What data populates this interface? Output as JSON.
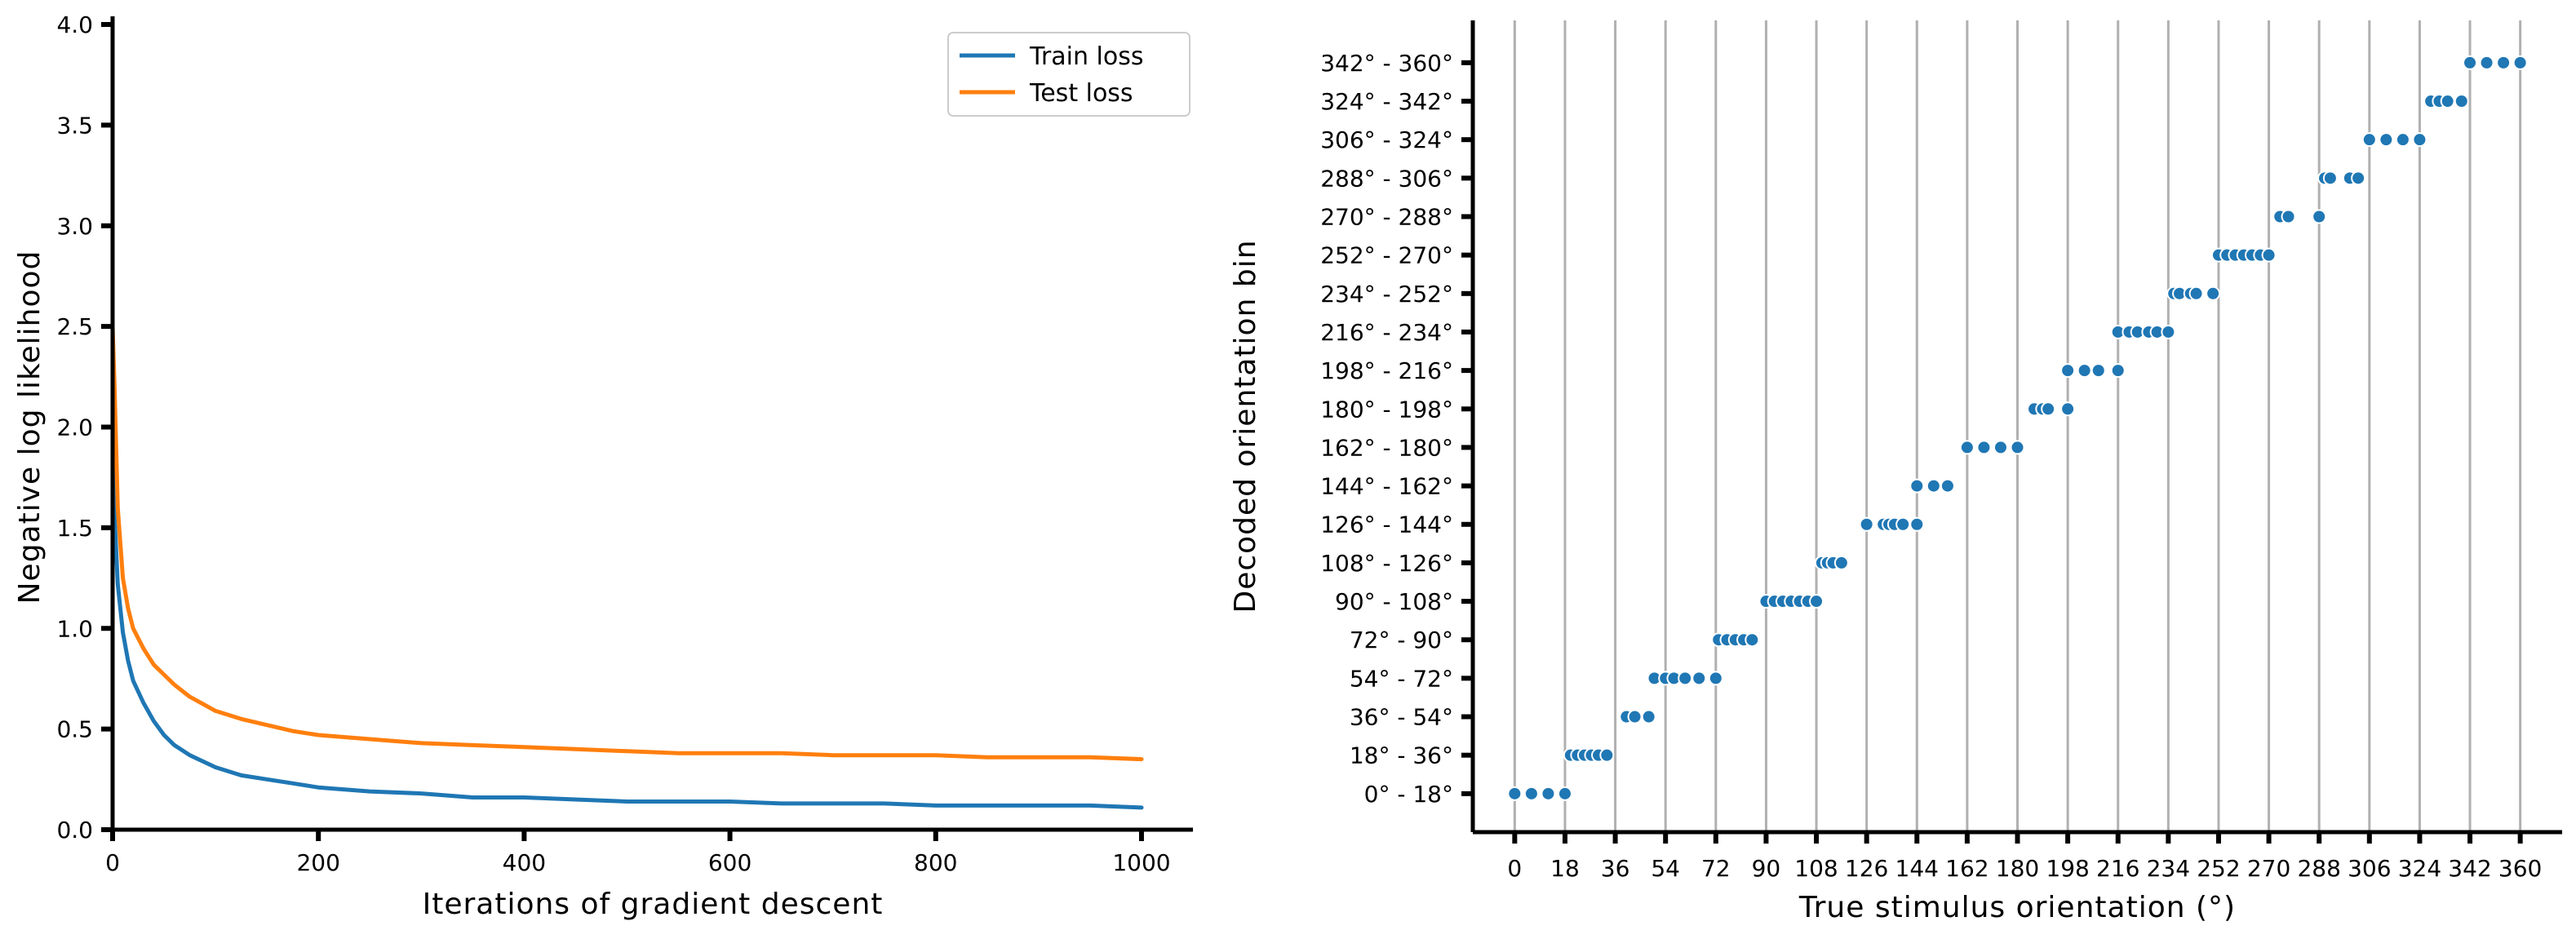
{
  "colors": {
    "train": "#1f77b4",
    "test": "#ff7f0e",
    "axis": "#000000",
    "grid": "#b0b0b0",
    "background": "#ffffff"
  },
  "chart_data": [
    {
      "type": "line",
      "title": "",
      "xlabel": "Iterations of gradient descent",
      "ylabel": "Negative log likelihood",
      "xlim": [
        0,
        1050
      ],
      "ylim": [
        0,
        4.0
      ],
      "xticks": [
        0,
        200,
        400,
        600,
        800,
        1000
      ],
      "xtick_labels": [
        "0",
        "200",
        "400",
        "600",
        "800",
        "1000"
      ],
      "yticks": [
        0.0,
        0.5,
        1.0,
        1.5,
        2.0,
        2.5,
        3.0,
        3.5,
        4.0
      ],
      "ytick_labels": [
        "0.0",
        "0.5",
        "1.0",
        "1.5",
        "2.0",
        "2.5",
        "3.0",
        "3.5",
        "4.0"
      ],
      "legend_placement": "top-right",
      "grid": false,
      "series": [
        {
          "name": "Train loss",
          "x": [
            0,
            2,
            5,
            10,
            15,
            20,
            30,
            40,
            50,
            60,
            75,
            100,
            125,
            150,
            175,
            200,
            250,
            300,
            350,
            400,
            450,
            500,
            550,
            600,
            650,
            700,
            750,
            800,
            850,
            900,
            950,
            1000
          ],
          "y": [
            2.05,
            1.55,
            1.22,
            0.98,
            0.84,
            0.74,
            0.63,
            0.54,
            0.47,
            0.42,
            0.37,
            0.31,
            0.27,
            0.25,
            0.23,
            0.21,
            0.19,
            0.18,
            0.16,
            0.16,
            0.15,
            0.14,
            0.14,
            0.14,
            0.13,
            0.13,
            0.13,
            0.12,
            0.12,
            0.12,
            0.12,
            0.11
          ]
        },
        {
          "name": "Test loss",
          "x": [
            0,
            2,
            5,
            10,
            15,
            20,
            30,
            40,
            50,
            60,
            75,
            100,
            125,
            150,
            175,
            200,
            250,
            300,
            350,
            400,
            450,
            500,
            550,
            600,
            650,
            700,
            750,
            800,
            850,
            900,
            950,
            1000
          ],
          "y": [
            2.5,
            2.18,
            1.6,
            1.25,
            1.1,
            1.0,
            0.9,
            0.82,
            0.77,
            0.72,
            0.66,
            0.59,
            0.55,
            0.52,
            0.49,
            0.47,
            0.45,
            0.43,
            0.42,
            0.41,
            0.4,
            0.39,
            0.38,
            0.38,
            0.38,
            0.37,
            0.37,
            0.37,
            0.36,
            0.36,
            0.36,
            0.35
          ]
        }
      ]
    },
    {
      "type": "scatter",
      "title": "",
      "xlabel": "True stimulus orientation (°)",
      "ylabel": "Decoded orientation bin",
      "xlim": [
        -15,
        375
      ],
      "xticks": [
        0,
        18,
        36,
        54,
        72,
        90,
        108,
        126,
        144,
        162,
        180,
        198,
        216,
        234,
        252,
        270,
        288,
        306,
        324,
        342,
        360
      ],
      "xtick_labels": [
        "0",
        "18",
        "36",
        "54",
        "72",
        "90",
        "108",
        "126",
        "144",
        "162",
        "180",
        "198",
        "216",
        "234",
        "252",
        "270",
        "288",
        "306",
        "324",
        "342",
        "360"
      ],
      "ylim": [
        -1,
        20.1
      ],
      "ytick_labels": [
        "0° - 18°",
        "18° - 36°",
        "36° - 54°",
        "54° - 72°",
        "72° - 90°",
        "90° - 108°",
        "108° - 126°",
        "126° - 144°",
        "144° - 162°",
        "162° - 180°",
        "180° - 198°",
        "198° - 216°",
        "216° - 234°",
        "234° - 252°",
        "252° - 270°",
        "270° - 288°",
        "288° - 306°",
        "306° - 324°",
        "324° - 342°",
        "342° - 360°"
      ],
      "vertical_gridlines_at_xticks": true,
      "marker_color": "#1f77b4",
      "points": [
        [
          0,
          0
        ],
        [
          6,
          0
        ],
        [
          12,
          0
        ],
        [
          18,
          0
        ],
        [
          20,
          1
        ],
        [
          22.5,
          1
        ],
        [
          25,
          1
        ],
        [
          27.5,
          1
        ],
        [
          30,
          1
        ],
        [
          33,
          1
        ],
        [
          40,
          2
        ],
        [
          43,
          2
        ],
        [
          48,
          2
        ],
        [
          50,
          3
        ],
        [
          54,
          3
        ],
        [
          57,
          3
        ],
        [
          61,
          3
        ],
        [
          66,
          3
        ],
        [
          72,
          3
        ],
        [
          73,
          4
        ],
        [
          76,
          4
        ],
        [
          79,
          4
        ],
        [
          82,
          4
        ],
        [
          85,
          4
        ],
        [
          90,
          5
        ],
        [
          93,
          5
        ],
        [
          96,
          5
        ],
        [
          99,
          5
        ],
        [
          102,
          5
        ],
        [
          105,
          5
        ],
        [
          108,
          5
        ],
        [
          110,
          6
        ],
        [
          112,
          6
        ],
        [
          114,
          6
        ],
        [
          117,
          6
        ],
        [
          126,
          7
        ],
        [
          132,
          7
        ],
        [
          134,
          7
        ],
        [
          136,
          7
        ],
        [
          139,
          7
        ],
        [
          144,
          7
        ],
        [
          144,
          8
        ],
        [
          150,
          8
        ],
        [
          155,
          8
        ],
        [
          162,
          9
        ],
        [
          168,
          9
        ],
        [
          174,
          9
        ],
        [
          180,
          9
        ],
        [
          186,
          10
        ],
        [
          189,
          10
        ],
        [
          191,
          10
        ],
        [
          198,
          10
        ],
        [
          198,
          11
        ],
        [
          204,
          11
        ],
        [
          209,
          11
        ],
        [
          216,
          11
        ],
        [
          216,
          12
        ],
        [
          220,
          12
        ],
        [
          223,
          12
        ],
        [
          227,
          12
        ],
        [
          230,
          12
        ],
        [
          234,
          12
        ],
        [
          236,
          13
        ],
        [
          238,
          13
        ],
        [
          242,
          13
        ],
        [
          244,
          13
        ],
        [
          250,
          13
        ],
        [
          252,
          14
        ],
        [
          255,
          14
        ],
        [
          258,
          14
        ],
        [
          261,
          14
        ],
        [
          264,
          14
        ],
        [
          267,
          14
        ],
        [
          270,
          14
        ],
        [
          274,
          15
        ],
        [
          277,
          15
        ],
        [
          288,
          15
        ],
        [
          290,
          16
        ],
        [
          292,
          16
        ],
        [
          299,
          16
        ],
        [
          302,
          16
        ],
        [
          306,
          17
        ],
        [
          312,
          17
        ],
        [
          318,
          17
        ],
        [
          324,
          17
        ],
        [
          328,
          18
        ],
        [
          331,
          18
        ],
        [
          334,
          18
        ],
        [
          339,
          18
        ],
        [
          342,
          19
        ],
        [
          348,
          19
        ],
        [
          354,
          19
        ],
        [
          360,
          19
        ]
      ]
    }
  ]
}
